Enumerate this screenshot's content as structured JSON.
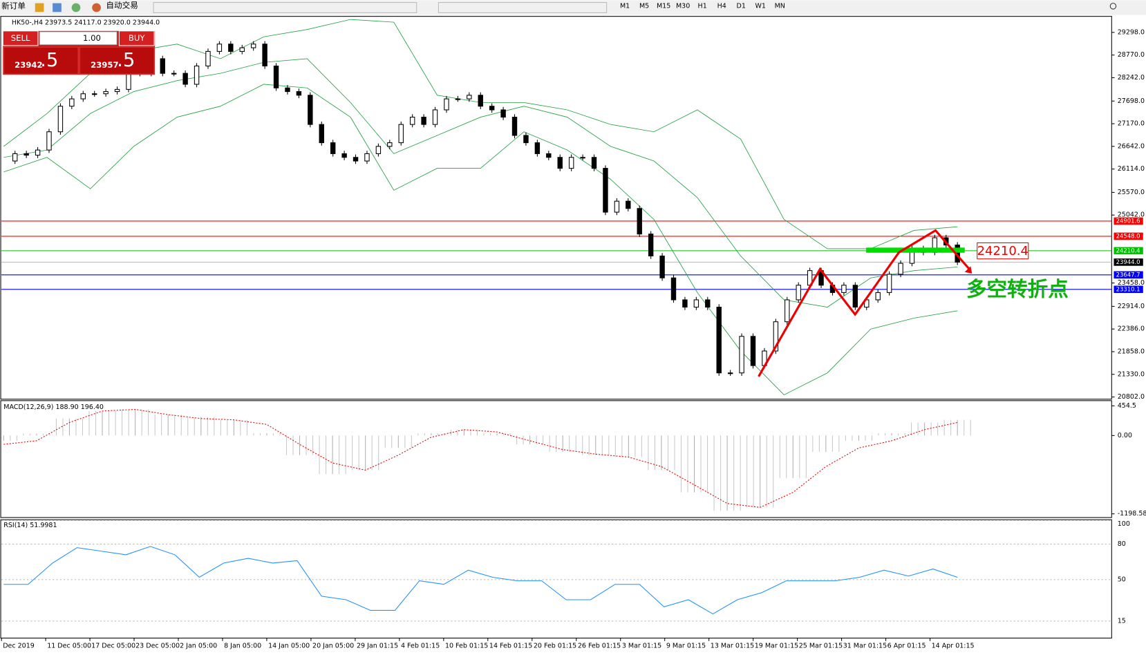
{
  "toolbar": {
    "new_order": "新订单",
    "auto_trade": "自动交易",
    "timeframes": [
      "M1",
      "M5",
      "M15",
      "M30",
      "H1",
      "H4",
      "D1",
      "W1",
      "MN"
    ]
  },
  "order_panel": {
    "sell": "SELL",
    "lot": "1.00",
    "buy": "BUY",
    "bid_main": "23942",
    "bid_frac": ".5",
    "ask_main": "23957",
    "ask_frac": ".5"
  },
  "chart": {
    "header": "HK50-,H4  23973.5 24117.0 23920.0 23944.0",
    "main": {
      "ylim": [
        20768,
        29655
      ],
      "price_ticks": [
        {
          "value": 29298,
          "label": "29298.0"
        },
        {
          "value": 28770,
          "label": "28770.0"
        },
        {
          "value": 28242,
          "label": "28242.0"
        },
        {
          "value": 27698,
          "label": "27698.0"
        },
        {
          "value": 27170,
          "label": "27170.0"
        },
        {
          "value": 26642,
          "label": "26642.0"
        },
        {
          "value": 26114,
          "label": "26114.0"
        },
        {
          "value": 25570,
          "label": "25570.0"
        },
        {
          "value": 25042,
          "label": "25042.0"
        },
        {
          "value": 23458,
          "label": "23458.0"
        },
        {
          "value": 22914,
          "label": "22914.0"
        },
        {
          "value": 22386,
          "label": "22386.0"
        },
        {
          "value": 21858,
          "label": "21858.0"
        },
        {
          "value": 21330,
          "label": "21330.0"
        },
        {
          "value": 20802,
          "label": "20802.0"
        }
      ],
      "levels": [
        {
          "value": 24901.6,
          "label": "24901.6",
          "color": "#ff0000"
        },
        {
          "value": 24548,
          "label": "24548.0",
          "color": "#ff0000"
        },
        {
          "value": 24210.4,
          "label": "24210.4",
          "color": "#00c000"
        },
        {
          "value": 23944,
          "label": "23944.0",
          "color": "#000000"
        },
        {
          "value": 23647.7,
          "label": "23647.7",
          "color": "#0000ff"
        },
        {
          "value": 23310.1,
          "label": "23310.1",
          "color": "#0000ff"
        }
      ],
      "closes": [
        26301,
        26472,
        26437,
        26557,
        26982,
        27578,
        27749,
        27868,
        27868,
        27919,
        27970,
        28344,
        28344,
        28685,
        28344,
        28344,
        28089,
        28515,
        28855,
        29026,
        28855,
        28940,
        29026,
        28515,
        28004,
        27919,
        27834,
        27153,
        26727,
        26472,
        26386,
        26301,
        26472,
        26642,
        26727,
        27153,
        27323,
        27153,
        27493,
        27749,
        27749,
        27834,
        27578,
        27493,
        27323,
        26897,
        26727,
        26472,
        26386,
        26131,
        26386,
        26386,
        26131,
        25109,
        25365,
        25195,
        24599,
        24088,
        23577,
        23066,
        22896,
        23066,
        22896,
        21363,
        21363,
        22215,
        21534,
        21874,
        22555,
        23066,
        23407,
        23747,
        23407,
        23236,
        23407,
        22896,
        23066,
        23236,
        23662,
        23917,
        24258,
        24173,
        24513,
        24343,
        23944
      ],
      "bb_upper": [
        26642,
        27408,
        28344,
        28855,
        29026,
        28685,
        29196,
        29366,
        29600,
        29536,
        27834,
        27664,
        27664,
        27493,
        27153,
        26982,
        27493,
        26812,
        24939,
        24258,
        24258,
        24684,
        24769
      ],
      "bb_middle": [
        26386,
        26557,
        27408,
        27919,
        28174,
        28344,
        28600,
        28685,
        27664,
        26472,
        26897,
        27323,
        27578,
        27323,
        26642,
        26301,
        25450,
        24088,
        23066,
        22896,
        23577,
        23747,
        23832
      ],
      "bb_lower": [
        26046,
        26386,
        25654,
        26642,
        27323,
        27578,
        28089,
        28004,
        27323,
        25620,
        26131,
        26131,
        26982,
        26557,
        25875,
        24939,
        23237,
        21875,
        20852,
        21363,
        22385,
        22641,
        22811
      ],
      "annotation_label": "24210.4",
      "annotation_text": "多空转折点"
    },
    "macd": {
      "header": "MACD(12,26,9) 188.90 196.40",
      "ylim": [
        -1255,
        534
      ],
      "ticks": [
        {
          "value": 454.5,
          "label": "454.5"
        },
        {
          "value": 0,
          "label": "0.00"
        },
        {
          "value": -1198.58,
          "label": "-1198.58"
        }
      ],
      "histogram": [
        -80,
        30,
        260,
        375,
        400,
        320,
        285,
        240,
        35,
        -300,
        -590,
        -530,
        -190,
        35,
        90,
        35,
        -135,
        -250,
        -300,
        -330,
        -530,
        -870,
        -1150,
        -1100,
        -650,
        -250,
        -80,
        35,
        200,
        240
      ],
      "signal": [
        -135,
        -80,
        200,
        375,
        400,
        320,
        260,
        240,
        170,
        -135,
        -420,
        -530,
        -300,
        -25,
        90,
        55,
        -80,
        -215,
        -285,
        -330,
        -475,
        -755,
        -1040,
        -1100,
        -870,
        -475,
        -190,
        -80,
        90,
        200
      ]
    },
    "rsi": {
      "header": "RSI(14) 51.9981",
      "ylim": [
        0.6,
        100.6
      ],
      "ticks": [
        100,
        80,
        50,
        15
      ],
      "values": [
        46,
        46,
        64,
        77,
        74,
        71,
        78,
        71,
        52,
        64,
        68,
        64,
        66,
        36,
        33,
        24,
        24,
        49,
        46,
        58,
        52,
        49,
        49,
        33,
        33,
        46,
        46,
        27,
        33,
        21,
        33,
        39,
        49,
        49,
        49,
        52,
        58,
        53,
        59,
        52
      ]
    },
    "dates": [
      "Dec 2019",
      "11 Dec 05:00",
      "17 Dec 05:00",
      "23 Dec 05:00",
      "2 Jan 05:00",
      "8 Jan 05:00",
      "14 Jan 05:00",
      "20 Jan 05:00",
      "29 Jan 01:15",
      "4 Feb 01:15",
      "10 Feb 01:15",
      "14 Feb 01:15",
      "20 Feb 01:15",
      "26 Feb 01:15",
      "3 Mar 01:15",
      "9 Mar 01:15",
      "13 Mar 01:15",
      "19 Mar 01:15",
      "25 Mar 01:15",
      "31 Mar 01:15",
      "6 Apr 01:15",
      "14 Apr 01:15"
    ]
  }
}
